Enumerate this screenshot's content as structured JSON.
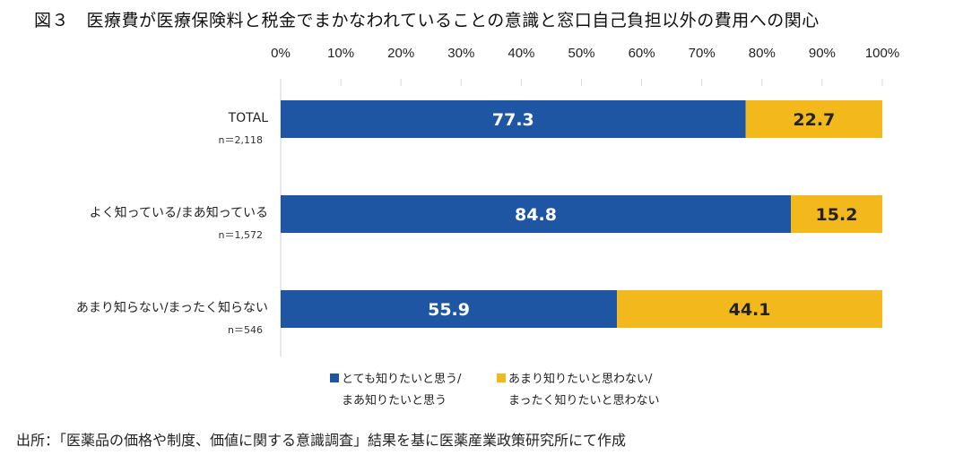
{
  "title": "図３　医療費が医療保険料と税金でまかなわれていることの意識と窓口自己負担以外の費用への関心",
  "source": "出所：「医薬品の価格や制度、価値に関する意識調査」結果を基に医薬産業政策研究所にて作成",
  "chart_data": {
    "type": "bar",
    "orientation": "horizontal",
    "stacked": true,
    "categories": [
      "TOTAL",
      "よく知っている/まあ知っている",
      "あまり知らない/まったく知らない"
    ],
    "category_n": [
      "n＝2,118",
      "n＝1,572",
      "n＝546"
    ],
    "series": [
      {
        "name": "とても知りたいと思う/まあ知りたいと思う",
        "legend_lines": [
          "とても知りたいと思う/",
          "まあ知りたいと思う"
        ],
        "color": "#1f56a4",
        "values": [
          77.3,
          84.8,
          55.9
        ],
        "labels": [
          "77.3",
          "84.8",
          "55.9"
        ]
      },
      {
        "name": "あまり知りたいと思わない/まったく知りたいと思わない",
        "legend_lines": [
          "あまり知りたいと思わない/",
          "まったく知りたいと思わない"
        ],
        "color": "#f2b81c",
        "values": [
          22.7,
          15.2,
          44.1
        ],
        "labels": [
          "22.7",
          "15.2",
          "44.1"
        ]
      }
    ],
    "xlim": [
      0,
      100
    ],
    "xticks": [
      "0%",
      "10%",
      "20%",
      "30%",
      "40%",
      "50%",
      "60%",
      "70%",
      "80%",
      "90%",
      "100%"
    ],
    "xaxis_position": "top",
    "grid": false,
    "legend_position": "bottom"
  }
}
